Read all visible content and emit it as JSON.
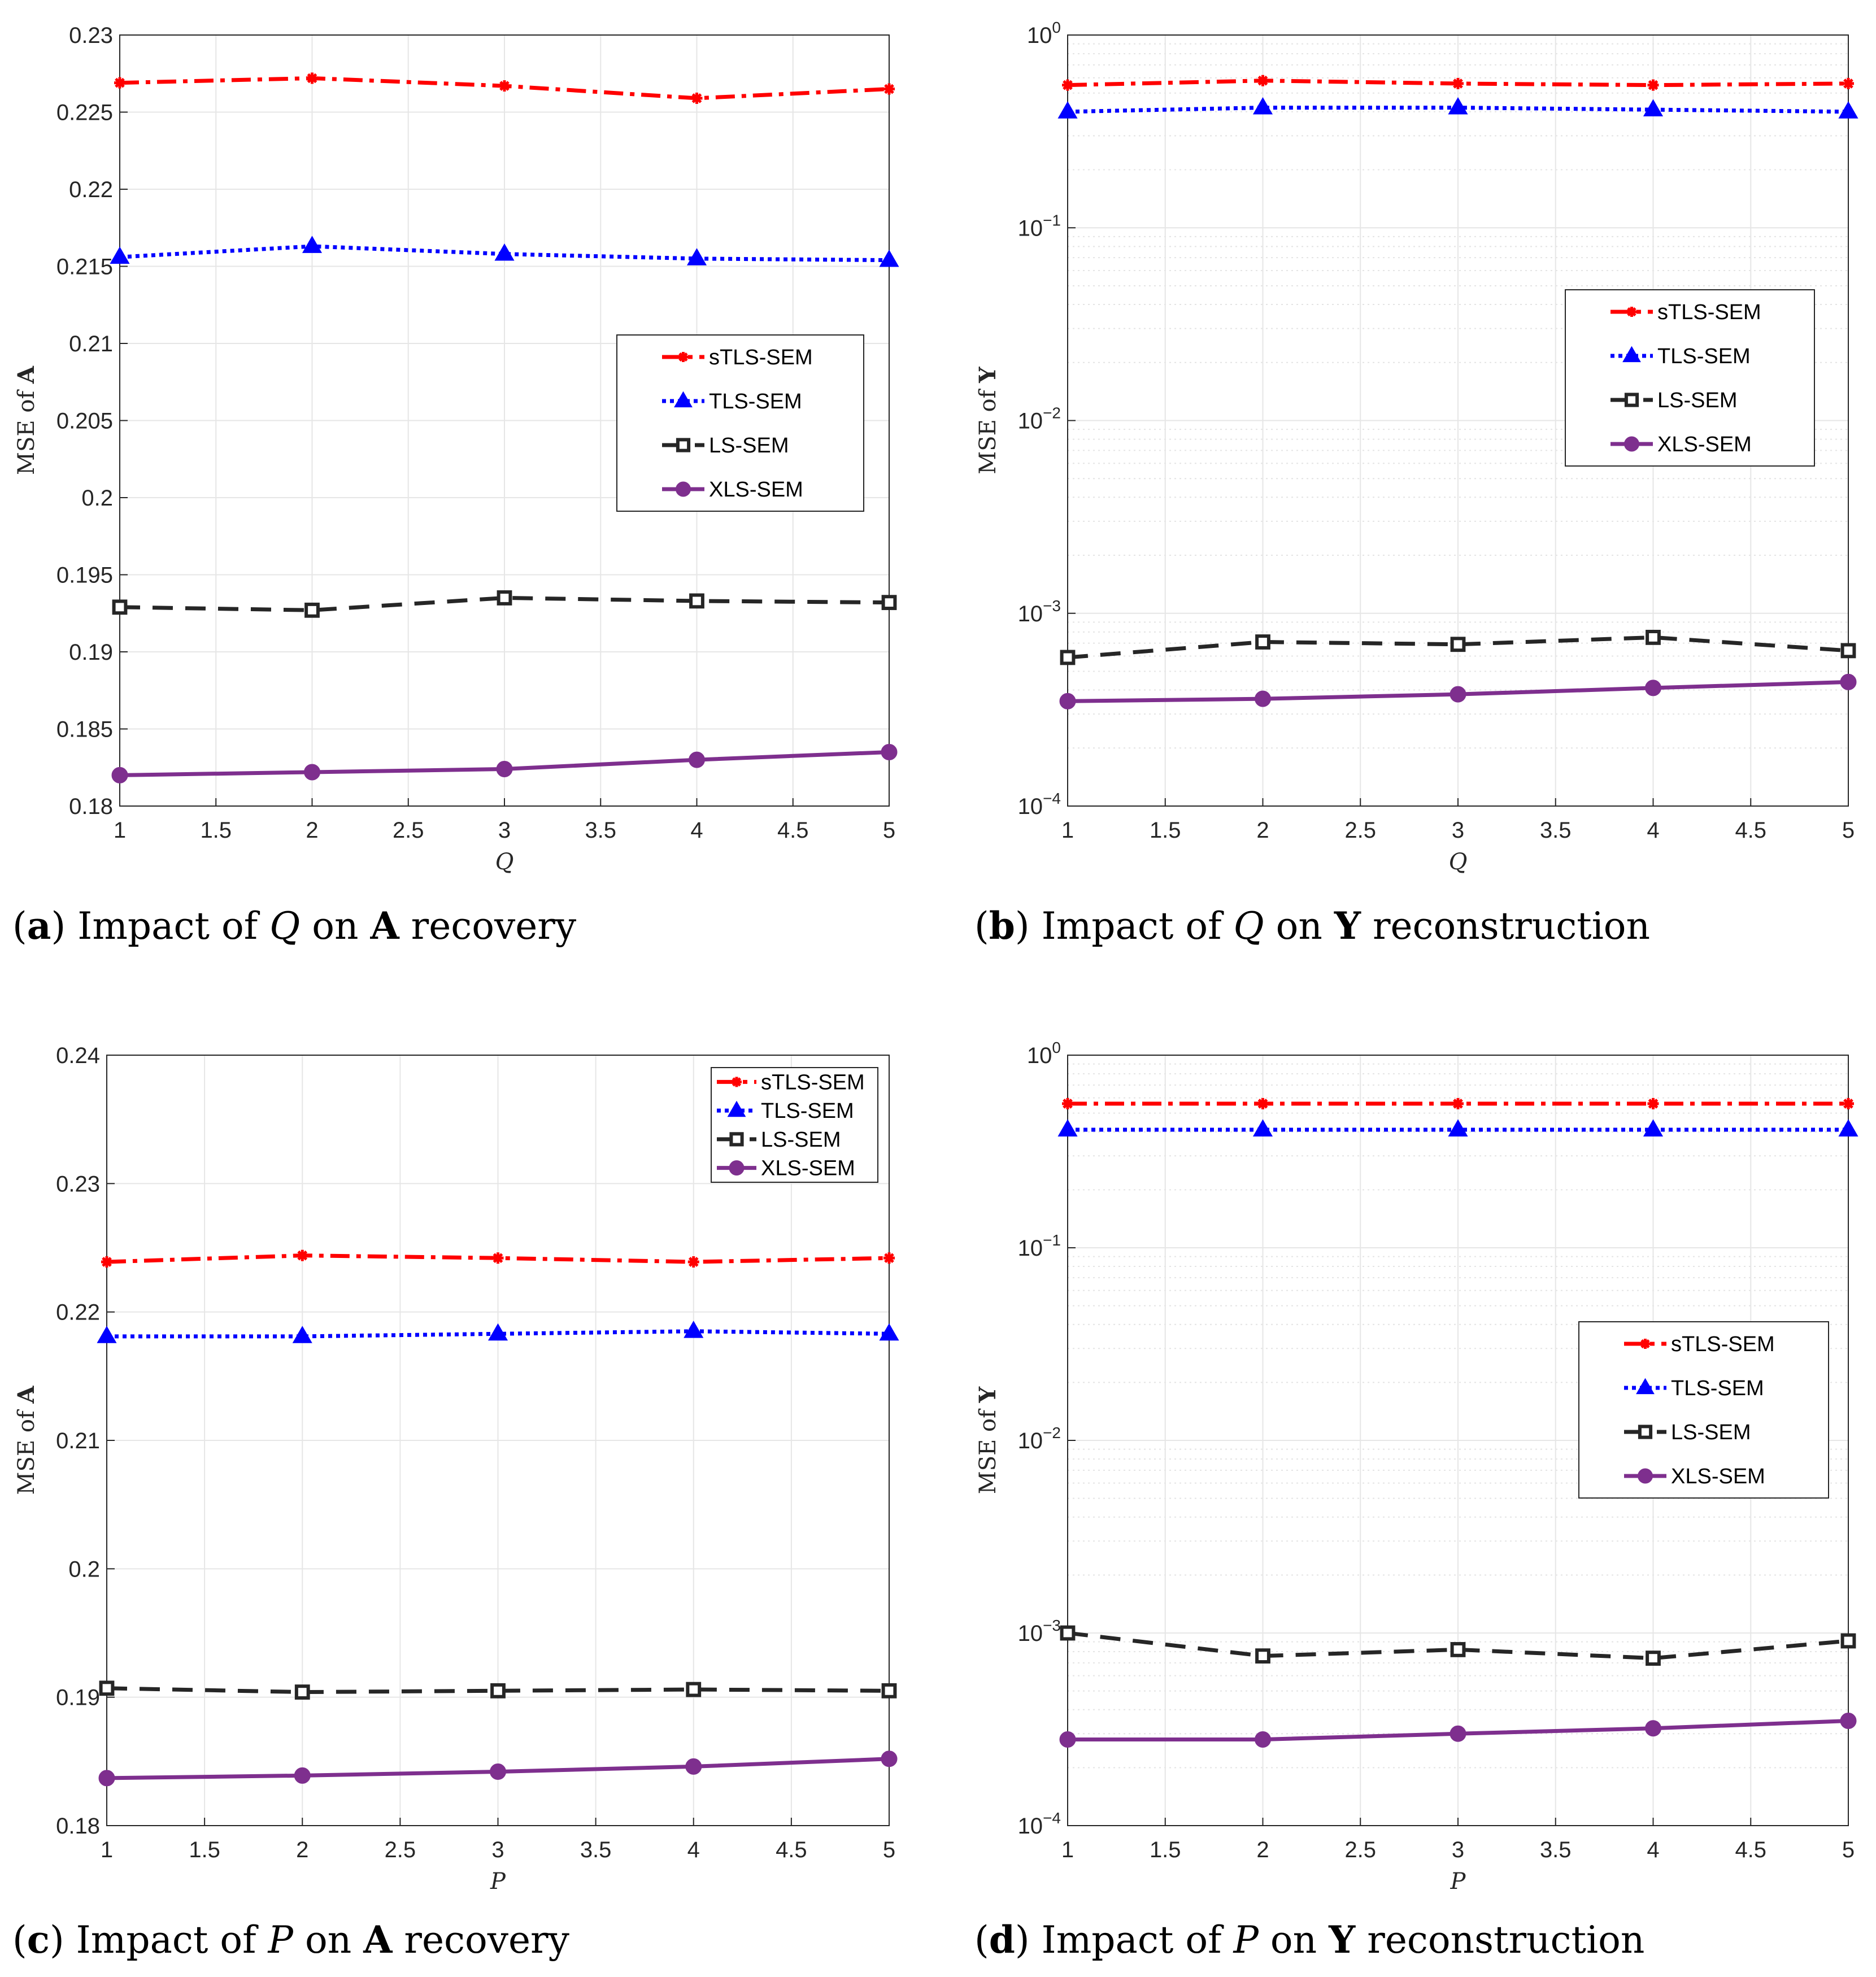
{
  "series_styles": {
    "sTLS-SEM": {
      "color": "#ff0000",
      "marker": "asterisk",
      "line": "dashdot"
    },
    "TLS-SEM": {
      "color": "#0000ff",
      "marker": "triangle",
      "line": "dotted"
    },
    "LS-SEM": {
      "color": "#262626",
      "marker": "square",
      "line": "dashed"
    },
    "XLS-SEM": {
      "color": "#7e2f8e",
      "marker": "circle",
      "line": "solid"
    }
  },
  "chart_data": [
    {
      "id": "a",
      "type": "line",
      "scale": "linear",
      "caption": {
        "label": "a",
        "pre": "Impact of",
        "var": "Q",
        "mid": "on",
        "bold": "A",
        "post": "recovery"
      },
      "xlabel": "Q",
      "ylabel_pre": "MSE  of",
      "ylabel_bold": "A",
      "x": [
        1,
        2,
        3,
        4,
        5
      ],
      "xlim": [
        1,
        5
      ],
      "xticks": [
        1,
        1.5,
        2,
        2.5,
        3,
        3.5,
        4,
        4.5,
        5
      ],
      "xtick_labels": [
        "1",
        "1.5",
        "2",
        "2.5",
        "3",
        "3.5",
        "4",
        "4.5",
        "5"
      ],
      "ylim": [
        0.18,
        0.23
      ],
      "yticks": [
        0.18,
        0.185,
        0.19,
        0.195,
        0.2,
        0.205,
        0.21,
        0.215,
        0.22,
        0.225,
        0.23
      ],
      "ytick_labels": [
        "0.18",
        "0.185",
        "0.19",
        "0.195",
        "0.2",
        "0.205",
        "0.21",
        "0.215",
        "0.22",
        "0.225",
        "0.23"
      ],
      "legend_position": "center-right",
      "series": [
        {
          "name": "sTLS-SEM",
          "values": [
            0.2269,
            0.2272,
            0.2267,
            0.2259,
            0.2265
          ]
        },
        {
          "name": "TLS-SEM",
          "values": [
            0.2156,
            0.2163,
            0.2158,
            0.2155,
            0.2154
          ]
        },
        {
          "name": "LS-SEM",
          "values": [
            0.1929,
            0.1927,
            0.1935,
            0.1933,
            0.1932
          ]
        },
        {
          "name": "XLS-SEM",
          "values": [
            0.182,
            0.1822,
            0.1824,
            0.183,
            0.1835
          ]
        }
      ]
    },
    {
      "id": "b",
      "type": "line",
      "scale": "log",
      "caption": {
        "label": "b",
        "pre": "Impact of",
        "var": "Q",
        "mid": "on",
        "bold": "Y",
        "post": "reconstruction"
      },
      "xlabel": "Q",
      "ylabel_pre": "MSE  of",
      "ylabel_bold": "Y",
      "x": [
        1,
        2,
        3,
        4,
        5
      ],
      "xlim": [
        1,
        5
      ],
      "xticks": [
        1,
        1.5,
        2,
        2.5,
        3,
        3.5,
        4,
        4.5,
        5
      ],
      "xtick_labels": [
        "1",
        "1.5",
        "2",
        "2.5",
        "3",
        "3.5",
        "4",
        "4.5",
        "5"
      ],
      "ylim": [
        0.0001,
        1
      ],
      "yticks": [
        0.0001,
        0.001,
        0.01,
        0.1,
        1
      ],
      "ytick_labels": [
        "10^-4",
        "10^-3",
        "10^-2",
        "10^-1",
        "10^0"
      ],
      "legend_position": "upper-right",
      "series": [
        {
          "name": "sTLS-SEM",
          "values": [
            0.55,
            0.58,
            0.56,
            0.55,
            0.56
          ]
        },
        {
          "name": "TLS-SEM",
          "values": [
            0.4,
            0.42,
            0.42,
            0.41,
            0.4
          ]
        },
        {
          "name": "LS-SEM",
          "values": [
            0.00059,
            0.00071,
            0.00069,
            0.00075,
            0.00064
          ]
        },
        {
          "name": "XLS-SEM",
          "values": [
            0.00035,
            0.00036,
            0.00038,
            0.00041,
            0.00044
          ]
        }
      ]
    },
    {
      "id": "c",
      "type": "line",
      "scale": "linear",
      "caption": {
        "label": "c",
        "pre": "Impact of",
        "var": "P",
        "mid": "on",
        "bold": "A",
        "post": "recovery"
      },
      "xlabel": "P",
      "ylabel_pre": "MSE  of",
      "ylabel_bold": "A",
      "x": [
        1,
        2,
        3,
        4,
        5
      ],
      "xlim": [
        1,
        5
      ],
      "xticks": [
        1,
        1.5,
        2,
        2.5,
        3,
        3.5,
        4,
        4.5,
        5
      ],
      "xtick_labels": [
        "1",
        "1.5",
        "2",
        "2.5",
        "3",
        "3.5",
        "4",
        "4.5",
        "5"
      ],
      "ylim": [
        0.18,
        0.24
      ],
      "yticks": [
        0.18,
        0.19,
        0.2,
        0.21,
        0.22,
        0.23,
        0.24
      ],
      "ytick_labels": [
        "0.18",
        "0.19",
        "0.2",
        "0.21",
        "0.22",
        "0.23",
        "0.24"
      ],
      "legend_position": "top-right",
      "series": [
        {
          "name": "sTLS-SEM",
          "values": [
            0.2239,
            0.2244,
            0.2242,
            0.2239,
            0.2242
          ]
        },
        {
          "name": "TLS-SEM",
          "values": [
            0.2181,
            0.2181,
            0.2183,
            0.2185,
            0.2183
          ]
        },
        {
          "name": "LS-SEM",
          "values": [
            0.1907,
            0.1904,
            0.1905,
            0.1906,
            0.1905
          ]
        },
        {
          "name": "XLS-SEM",
          "values": [
            0.1837,
            0.1839,
            0.1842,
            0.1846,
            0.1852
          ]
        }
      ]
    },
    {
      "id": "d",
      "type": "line",
      "scale": "log",
      "caption": {
        "label": "d",
        "pre": "Impact of",
        "var": "P",
        "mid": "on",
        "bold": "Y",
        "post": "reconstruction"
      },
      "xlabel": "P",
      "ylabel_pre": "MSE  of",
      "ylabel_bold": "Y",
      "x": [
        1,
        2,
        3,
        4,
        5
      ],
      "xlim": [
        1,
        5
      ],
      "xticks": [
        1,
        1.5,
        2,
        2.5,
        3,
        3.5,
        4,
        4.5,
        5
      ],
      "xtick_labels": [
        "1",
        "1.5",
        "2",
        "2.5",
        "3",
        "3.5",
        "4",
        "4.5",
        "5"
      ],
      "ylim": [
        0.0001,
        1
      ],
      "yticks": [
        0.0001,
        0.001,
        0.01,
        0.1,
        1
      ],
      "ytick_labels": [
        "10^-4",
        "10^-3",
        "10^-2",
        "10^-1",
        "10^0"
      ],
      "legend_position": "center-right",
      "series": [
        {
          "name": "sTLS-SEM",
          "values": [
            0.56,
            0.56,
            0.56,
            0.56,
            0.56
          ]
        },
        {
          "name": "TLS-SEM",
          "values": [
            0.41,
            0.41,
            0.41,
            0.41,
            0.41
          ]
        },
        {
          "name": "LS-SEM",
          "values": [
            0.001,
            0.00076,
            0.00082,
            0.00074,
            0.00091
          ]
        },
        {
          "name": "XLS-SEM",
          "values": [
            0.00028,
            0.00028,
            0.0003,
            0.00032,
            0.00035
          ]
        }
      ]
    }
  ]
}
